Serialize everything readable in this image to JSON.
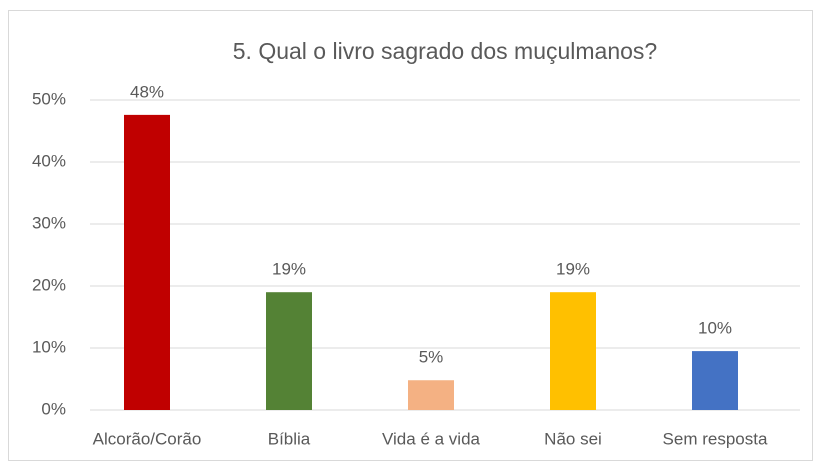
{
  "chart_data": {
    "type": "bar",
    "title": "5. Qual o livro sagrado dos muçulmanos?",
    "categories": [
      "Alcorão/Corão",
      "Bíblia",
      "Vida é a vida",
      "Não sei",
      "Sem resposta"
    ],
    "values": [
      47.6,
      19,
      4.8,
      19,
      9.5
    ],
    "value_labels": [
      "48%",
      "19%",
      "5%",
      "19%",
      "10%"
    ],
    "colors": [
      "#c00000",
      "#548235",
      "#f4b183",
      "#ffc000",
      "#4472c4"
    ],
    "ylim": [
      0,
      50
    ],
    "yticks": [
      {
        "value": 0,
        "label": "0%"
      },
      {
        "value": 10,
        "label": "10%"
      },
      {
        "value": 20,
        "label": "20%"
      },
      {
        "value": 30,
        "label": "30%"
      },
      {
        "value": 40,
        "label": "40%"
      },
      {
        "value": 50,
        "label": "50%"
      }
    ],
    "grid": true
  }
}
